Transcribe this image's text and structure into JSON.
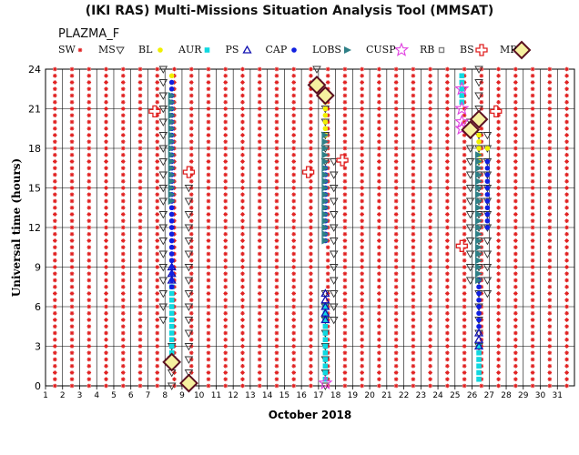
{
  "header": {
    "title": "(IKI RAS) Multi-Missions Situation Analysis Tool (MMSAT)",
    "subtitle": "PLAZMA_F"
  },
  "legend": [
    {
      "key": "sw",
      "label": "SW",
      "symbol": "star-small",
      "color": "#e02020"
    },
    {
      "key": "ms",
      "label": "MS",
      "symbol": "tri-down",
      "color": "#333333"
    },
    {
      "key": "bl",
      "label": "BL",
      "symbol": "dot",
      "color": "#f0f000"
    },
    {
      "key": "aur",
      "label": "AUR",
      "symbol": "square",
      "color": "#10d8e0"
    },
    {
      "key": "ps",
      "label": "PS",
      "symbol": "tri-up",
      "color": "#1010b0"
    },
    {
      "key": "cap",
      "label": "CAP",
      "symbol": "dot",
      "color": "#1020e0"
    },
    {
      "key": "lobs",
      "label": "LOBS",
      "symbol": "wedge",
      "color": "#2e7f86"
    },
    {
      "key": "cusp",
      "label": "CUSP",
      "symbol": "star",
      "color": "#e040e0"
    },
    {
      "key": "rb",
      "label": "RB",
      "symbol": "square-small",
      "color": "#808080"
    },
    {
      "key": "bs",
      "label": "BS",
      "symbol": "cross",
      "color": "#e02020"
    },
    {
      "key": "mp",
      "label": "MP",
      "symbol": "diamond",
      "color": "#5a1020"
    }
  ],
  "chart_data": {
    "type": "scatter",
    "title": "(IKI RAS) Multi-Missions Situation Analysis Tool (MMSAT)",
    "subtitle": "PLAZMA_F",
    "xlabel": "October 2018",
    "ylabel": "Universal time (hours)",
    "xlim": [
      1,
      32
    ],
    "ylim": [
      0,
      24
    ],
    "x_ticks": [
      1,
      2,
      3,
      4,
      5,
      6,
      7,
      8,
      9,
      10,
      11,
      12,
      13,
      14,
      15,
      16,
      17,
      18,
      19,
      20,
      21,
      22,
      23,
      24,
      25,
      26,
      27,
      28,
      29,
      30,
      31
    ],
    "y_ticks": [
      0,
      3,
      6,
      9,
      12,
      15,
      18,
      21,
      24
    ],
    "grid": true,
    "legend_position": "top",
    "background_region": {
      "name": "SW",
      "x_range": [
        1,
        32
      ],
      "y_range": [
        0,
        24
      ],
      "x_step": 1,
      "y_step": 0.5
    },
    "series": [
      {
        "name": "MS",
        "points": [
          [
            7.9,
            5
          ],
          [
            7.9,
            24
          ],
          [
            8.4,
            0
          ],
          [
            8.4,
            3
          ],
          [
            9.4,
            1
          ],
          [
            9.4,
            15.5
          ],
          [
            16.9,
            23
          ],
          [
            16.9,
            24
          ],
          [
            17.4,
            0
          ],
          [
            17.4,
            7
          ],
          [
            17.4,
            17
          ],
          [
            17.4,
            21
          ],
          [
            17.9,
            5
          ],
          [
            17.9,
            17.5
          ],
          [
            25.9,
            8
          ],
          [
            25.9,
            20
          ],
          [
            26.4,
            3
          ],
          [
            26.4,
            24
          ],
          [
            26.9,
            7
          ],
          [
            26.9,
            19
          ]
        ]
      },
      {
        "name": "BL",
        "points": [
          [
            8.4,
            20
          ],
          [
            8.4,
            23.5
          ],
          [
            17.4,
            19
          ],
          [
            17.4,
            21.5
          ],
          [
            26.4,
            19
          ],
          [
            26.4,
            17
          ],
          [
            26.9,
            18
          ]
        ]
      },
      {
        "name": "AUR",
        "points": [
          [
            8.4,
            2
          ],
          [
            8.4,
            7.5
          ],
          [
            17.4,
            0.5
          ],
          [
            17.4,
            6
          ],
          [
            25.4,
            21.5
          ],
          [
            25.4,
            23.5
          ],
          [
            26.4,
            0.5
          ],
          [
            26.4,
            3
          ]
        ]
      },
      {
        "name": "PS",
        "points": [
          [
            8.4,
            8
          ],
          [
            8.4,
            9
          ],
          [
            17.4,
            5
          ],
          [
            17.4,
            7
          ],
          [
            26.4,
            3
          ],
          [
            26.4,
            4
          ]
        ]
      },
      {
        "name": "CAP",
        "points": [
          [
            8.4,
            9.5
          ],
          [
            8.4,
            14
          ],
          [
            8.4,
            23
          ],
          [
            17.4,
            7.5
          ],
          [
            17.4,
            11
          ],
          [
            17.4,
            16.5
          ],
          [
            26.4,
            4.5
          ],
          [
            26.4,
            8
          ],
          [
            26.9,
            12
          ],
          [
            26.9,
            17
          ]
        ]
      },
      {
        "name": "LOBS",
        "points": [
          [
            8.4,
            14
          ],
          [
            8.4,
            22
          ],
          [
            17.4,
            11
          ],
          [
            17.4,
            19
          ],
          [
            26.4,
            8
          ],
          [
            26.4,
            17.5
          ]
        ]
      },
      {
        "name": "CUSP",
        "points": [
          [
            17.4,
            0.2
          ],
          [
            25.4,
            20
          ],
          [
            25.4,
            21
          ],
          [
            25.4,
            22.5
          ],
          [
            25.4,
            19.5
          ]
        ]
      },
      {
        "name": "BS",
        "points": [
          [
            7.4,
            20.8
          ],
          [
            9.4,
            16.2
          ],
          [
            16.4,
            16.2
          ],
          [
            18.4,
            17.1
          ],
          [
            25.4,
            10.6
          ],
          [
            27.4,
            20.8
          ]
        ]
      },
      {
        "name": "MP",
        "points": [
          [
            8.4,
            1.8
          ],
          [
            9.4,
            0.2
          ],
          [
            16.9,
            22.8
          ],
          [
            17.4,
            22
          ],
          [
            25.9,
            19.4
          ],
          [
            26.4,
            20.2
          ]
        ]
      }
    ]
  }
}
